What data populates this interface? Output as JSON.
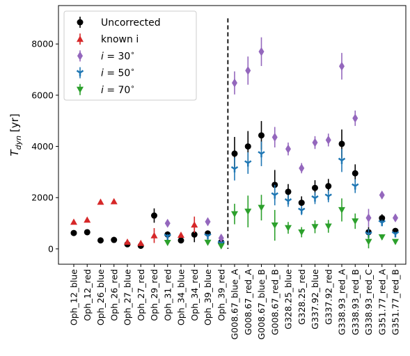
{
  "chart_data": {
    "type": "scatter",
    "ylabel": "T_dyn [yr]",
    "ylim": [
      -600,
      9500
    ],
    "yticks": [
      0,
      2000,
      4000,
      6000,
      8000
    ],
    "grid": false,
    "legend_position": "top-left",
    "separator_after_category": "Oph_39_red",
    "categories": [
      "Oph_12_blue",
      "Oph_12_red",
      "Oph_26_blue",
      "Oph_26_red",
      "Oph_27_blue",
      "Oph_27_red",
      "Oph_29_red",
      "Oph_31_red",
      "Oph_34_blue",
      "Oph_34_red",
      "Oph_39_blue",
      "Oph_39_red",
      "G008.67_blue_A",
      "G008.67_red_A",
      "G008.67_blue_B",
      "G008.67_red_B",
      "G328.25_blue",
      "G328.25_red",
      "G337.92_blue",
      "G337.92_red",
      "G338.93_red_A",
      "G338.93_red_B",
      "G338.93_red_C",
      "G351.77_red_A",
      "G351.77_red_B"
    ],
    "series": [
      {
        "name": "Uncorrected",
        "color": "#000000",
        "marker": "circle",
        "values": [
          620,
          650,
          330,
          350,
          180,
          120,
          1300,
          560,
          330,
          560,
          600,
          260,
          3720,
          4000,
          4430,
          2500,
          2230,
          1800,
          2380,
          2450,
          4100,
          2950,
          650,
          1200,
          700
        ],
        "errors": [
          90,
          60,
          30,
          30,
          40,
          30,
          280,
          120,
          50,
          300,
          100,
          80,
          650,
          600,
          560,
          580,
          300,
          250,
          300,
          280,
          560,
          350,
          200,
          150,
          100
        ]
      },
      {
        "name": "known i",
        "color": "#d62728",
        "marker": "triangle-up",
        "values": [
          1050,
          1130,
          1830,
          1850,
          270,
          220,
          520,
          null,
          540,
          940,
          null,
          null,
          null,
          null,
          null,
          null,
          null,
          null,
          null,
          null,
          null,
          null,
          null,
          null,
          null
        ],
        "errors": [
          50,
          50,
          30,
          30,
          30,
          20,
          290,
          0,
          80,
          320,
          0,
          0,
          0,
          0,
          0,
          0,
          0,
          0,
          0,
          0,
          0,
          0,
          0,
          0,
          0
        ]
      },
      {
        "name": "i = 30°",
        "color": "#9467bd",
        "marker": "diamond",
        "values": [
          null,
          null,
          null,
          null,
          null,
          null,
          null,
          1000,
          null,
          null,
          1060,
          420,
          6480,
          6960,
          7700,
          4360,
          3900,
          3150,
          4150,
          4250,
          7130,
          5100,
          1210,
          2100,
          1210
        ],
        "errors": [
          0,
          0,
          0,
          0,
          0,
          0,
          0,
          130,
          0,
          0,
          150,
          120,
          450,
          550,
          560,
          400,
          250,
          200,
          250,
          250,
          520,
          300,
          350,
          150,
          120
        ]
      },
      {
        "name": "i = 50°",
        "color": "#1f77b4",
        "marker": "tri-down",
        "values": [
          null,
          null,
          null,
          null,
          null,
          null,
          null,
          480,
          null,
          null,
          500,
          210,
          3120,
          3350,
          3710,
          2100,
          1870,
          1500,
          1980,
          2050,
          3450,
          2450,
          570,
          1020,
          580
        ],
        "errors": [
          0,
          0,
          0,
          0,
          0,
          0,
          0,
          90,
          0,
          0,
          80,
          60,
          450,
          420,
          480,
          400,
          230,
          180,
          230,
          230,
          450,
          270,
          200,
          120,
          80
        ]
      },
      {
        "name": "i = 70°",
        "color": "#2ca02c",
        "marker": "triangle-down",
        "values": [
          null,
          null,
          null,
          null,
          null,
          null,
          null,
          240,
          null,
          null,
          250,
          110,
          1360,
          1460,
          1610,
          920,
          820,
          650,
          860,
          880,
          1520,
          1080,
          280,
          460,
          280
        ],
        "errors": [
          0,
          0,
          0,
          0,
          0,
          0,
          0,
          80,
          0,
          0,
          70,
          40,
          400,
          620,
          500,
          600,
          230,
          200,
          250,
          250,
          450,
          300,
          260,
          110,
          70
        ]
      }
    ]
  }
}
